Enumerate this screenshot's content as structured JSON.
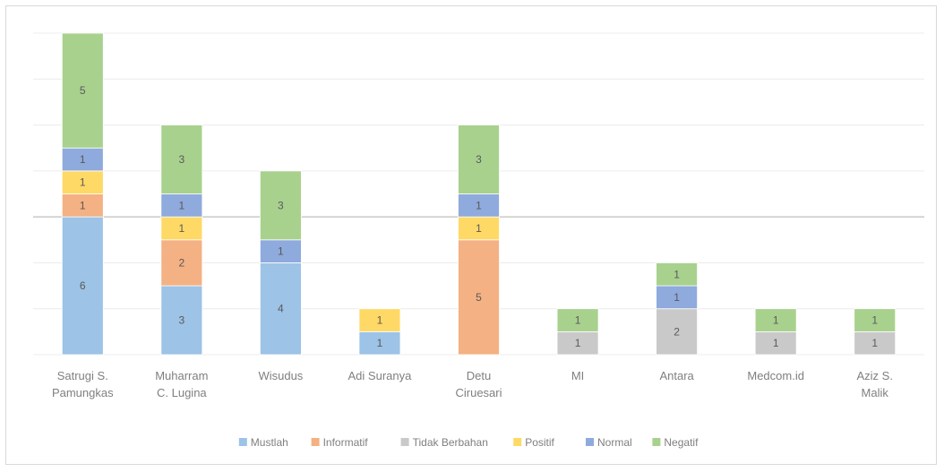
{
  "chart_data": {
    "type": "bar",
    "stacked": true,
    "title": "",
    "xlabel": "",
    "ylabel": "",
    "ylim": [
      0,
      14
    ],
    "grid": true,
    "legend_position": "bottom",
    "categories": [
      "Satrugi S. Pamungkas",
      "Muharram C. Lugina",
      "Wisudus",
      "Adi Suranya",
      "Detu Ciruesari",
      "MI",
      "Antara",
      "Medcom.id",
      "Aziz S. Malik"
    ],
    "category_lines": [
      [
        "Satrugi S.",
        "Pamungkas"
      ],
      [
        "Muharram",
        "C. Lugina"
      ],
      [
        "Wisudus"
      ],
      [
        "Adi Suranya"
      ],
      [
        "Detu",
        "Ciruesari"
      ],
      [
        "MI"
      ],
      [
        "Antara"
      ],
      [
        "Medcom.id"
      ],
      [
        "Aziz S.",
        "Malik"
      ]
    ],
    "series": [
      {
        "name": "Mustlah",
        "color": "#9dc3e6",
        "values": [
          6,
          3,
          4,
          1,
          0,
          0,
          0,
          0,
          0
        ]
      },
      {
        "name": "Informatif",
        "color": "#f4b183",
        "values": [
          1,
          2,
          0,
          0,
          5,
          0,
          0,
          0,
          0
        ]
      },
      {
        "name": "Tidak Berbahan",
        "color": "#c9c9c9",
        "values": [
          0,
          0,
          0,
          0,
          0,
          1,
          2,
          1,
          1
        ]
      },
      {
        "name": "Positif",
        "color": "#ffd966",
        "values": [
          1,
          1,
          0,
          1,
          1,
          0,
          0,
          0,
          0
        ]
      },
      {
        "name": "Normal",
        "color": "#8faadc",
        "values": [
          1,
          1,
          1,
          0,
          1,
          0,
          1,
          0,
          0
        ]
      },
      {
        "name": "Negatif",
        "color": "#a9d18e",
        "values": [
          5,
          3,
          3,
          0,
          3,
          1,
          1,
          1,
          1
        ]
      }
    ],
    "reference_line_y": 6
  }
}
